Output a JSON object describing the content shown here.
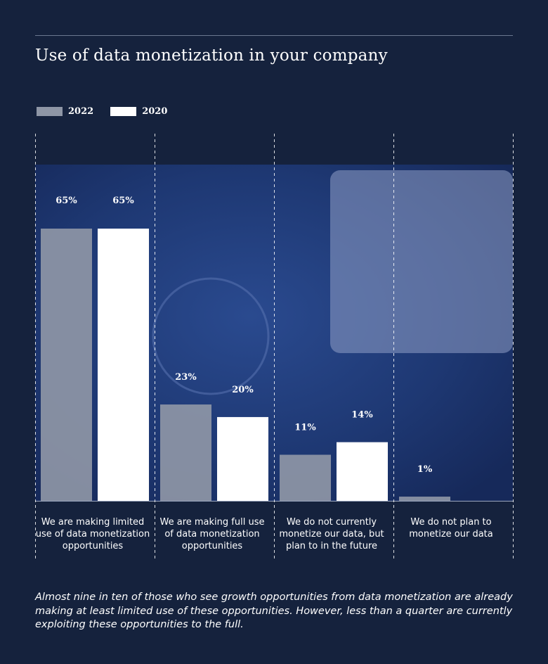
{
  "chart_data": {
    "type": "bar",
    "title": "Use of data monetization in your company",
    "categories": [
      "We are making limited use of data monetization opportunities",
      "We are making full use of data monetization opportunities",
      "We do not currently monetize our data, but plan to in the future",
      "We do not plan to monetize our data"
    ],
    "series": [
      {
        "name": "2022",
        "values": [
          65,
          23,
          11,
          1
        ],
        "labels": [
          "65%",
          "23%",
          "11%",
          "1%"
        ],
        "color": "#8e96a6"
      },
      {
        "name": "2020",
        "values": [
          65,
          20,
          14,
          null
        ],
        "labels": [
          "65%",
          "20%",
          "14%",
          ""
        ],
        "color": "#ffffff"
      }
    ],
    "ylim": [
      0,
      65
    ],
    "legend_position": "top-left",
    "grid": false
  },
  "caption": "Almost nine in ten of those who see growth opportunities from data monetization are already making at least limited use of these opportunities. However, less than a quarter are currently exploiting these opportunities to the full.",
  "colors": {
    "background": "#15223d",
    "image_panel": "#1d3570",
    "rule": "#6b7790",
    "divider": "#ffffff"
  }
}
